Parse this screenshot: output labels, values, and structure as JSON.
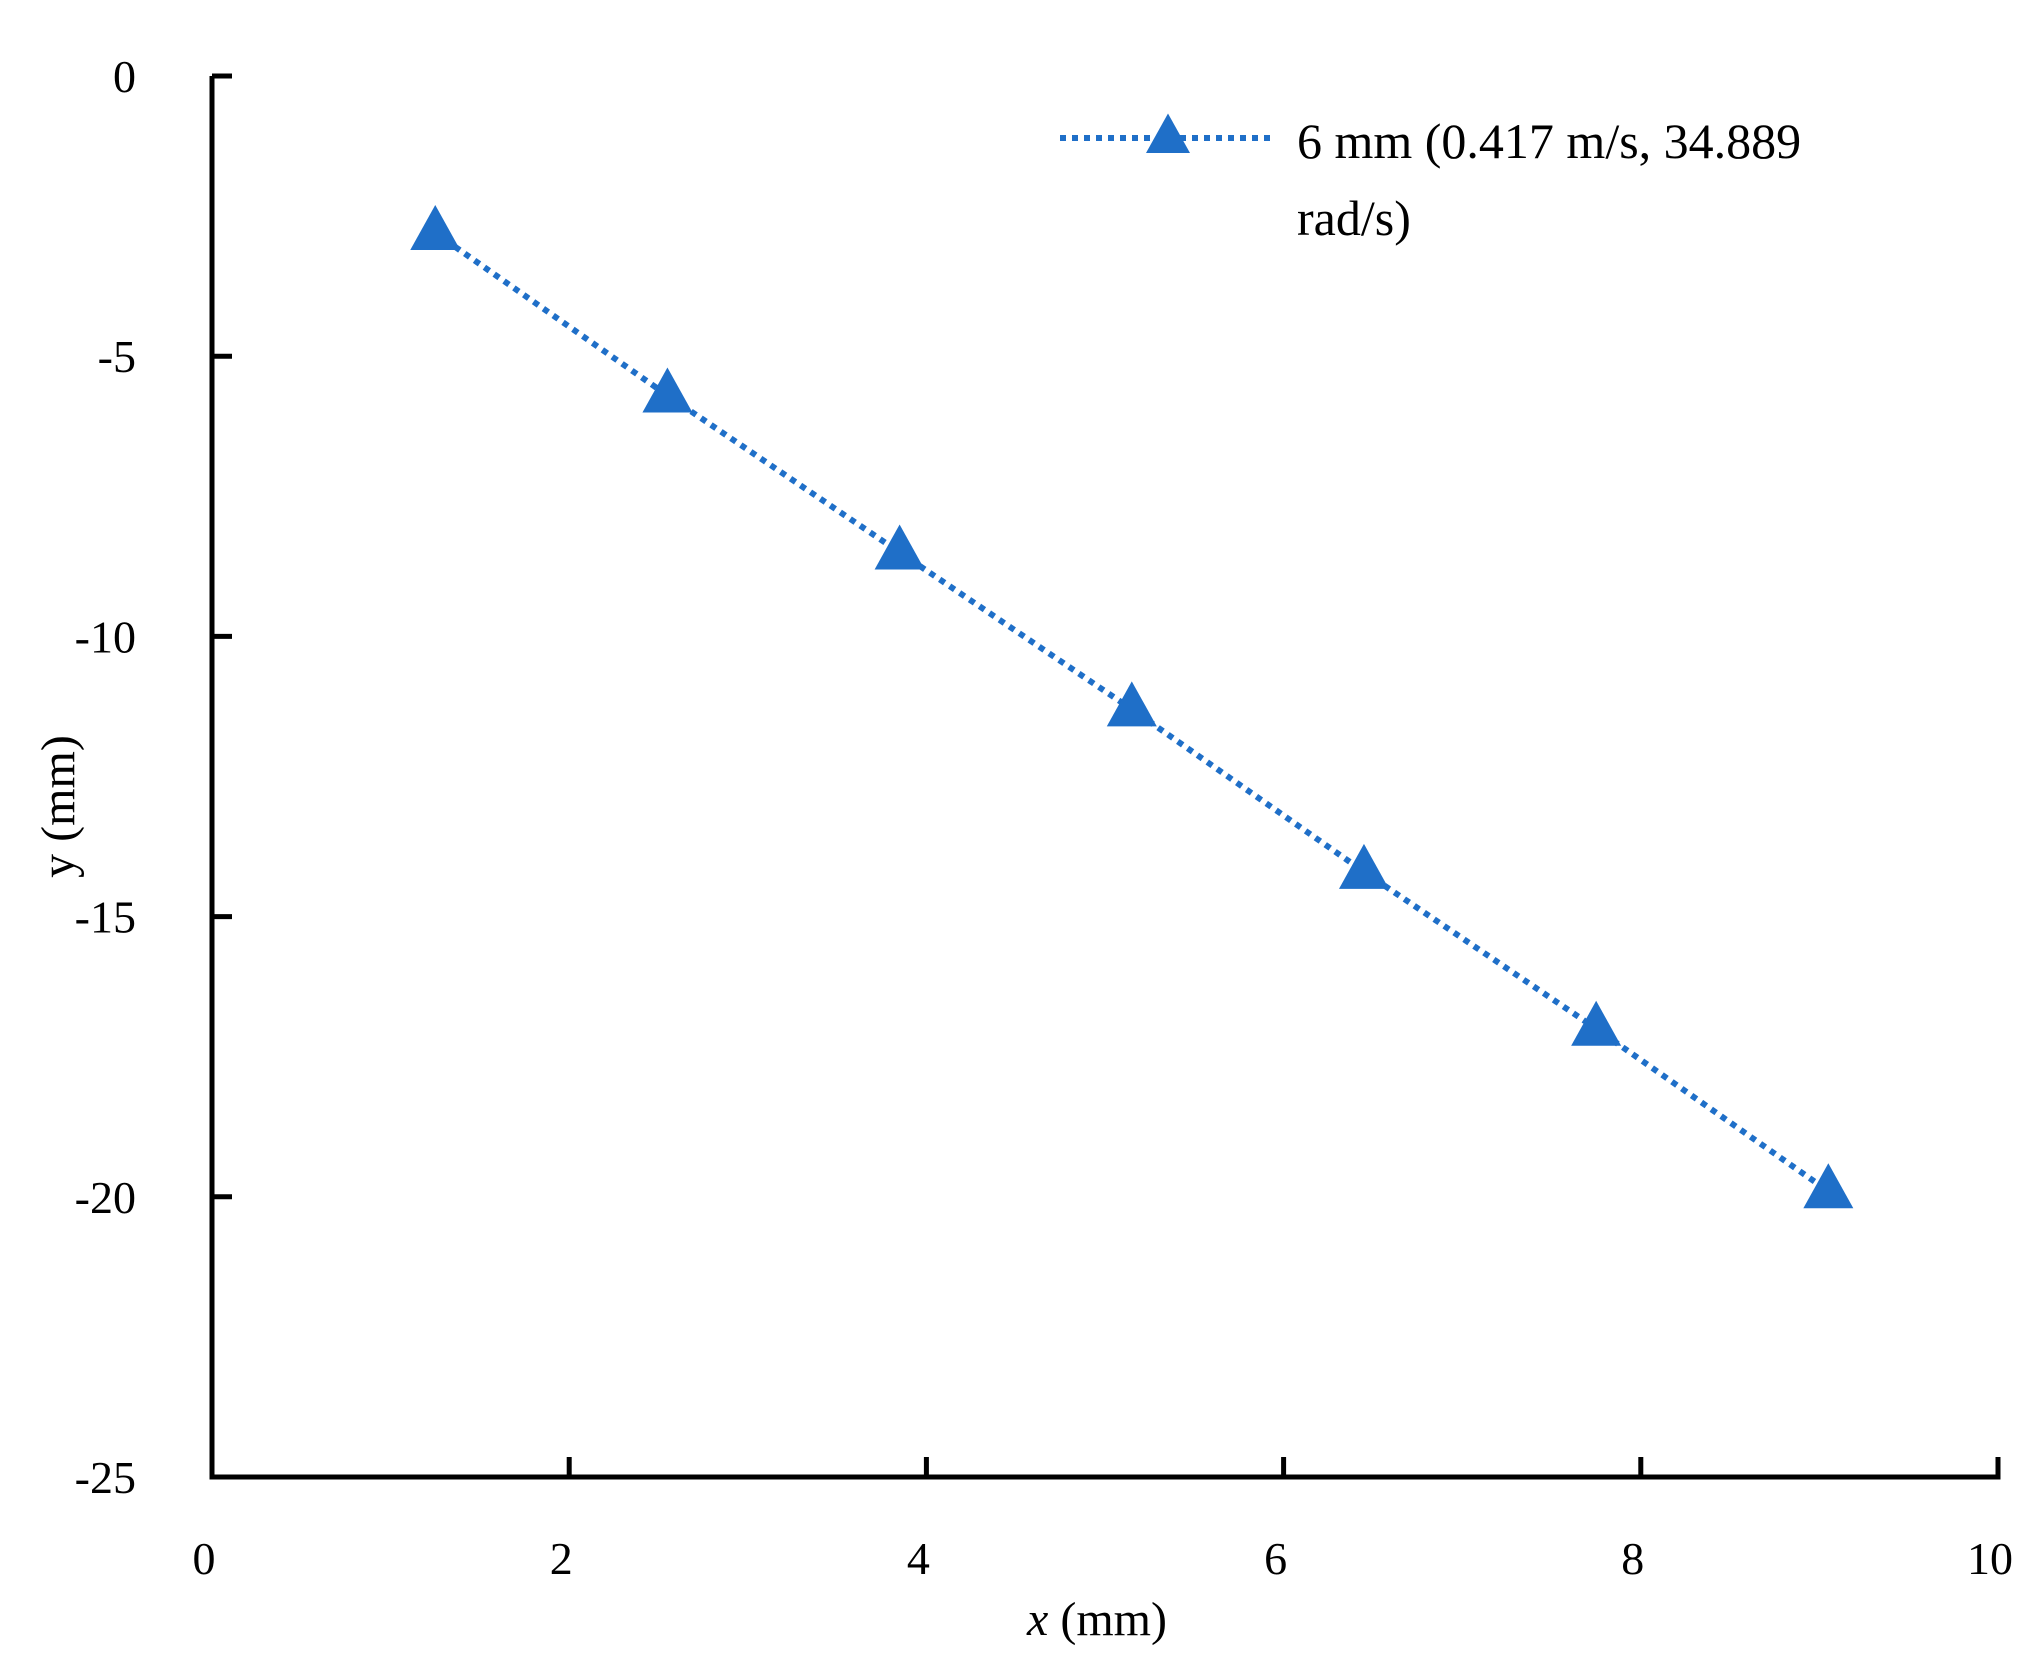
{
  "chart_data": {
    "type": "line",
    "title": "",
    "xlabel": "x (mm)",
    "xlabel_var": "x",
    "xlabel_unit": " (mm)",
    "ylabel": "y (mm)",
    "xlim": [
      0,
      10
    ],
    "ylim": [
      -25,
      0
    ],
    "xticks": [
      "0",
      "2",
      "4",
      "6",
      "8",
      "10"
    ],
    "yticks": [
      "0",
      "-5",
      "-10",
      "-15",
      "-20",
      "-25"
    ],
    "grid": false,
    "legend_position": "top-right",
    "series": [
      {
        "name": "6 mm (0.417 m/s, 34.889 rad/s)",
        "name_lines": [
          "6 mm (0.417 m/s, 34.889",
          "rad/s)"
        ],
        "color": "#1f6fc8",
        "marker": "triangle",
        "line_style": "dotted",
        "x": [
          1.25,
          2.55,
          3.85,
          5.15,
          6.45,
          7.75,
          9.05
        ],
        "y": [
          -2.8,
          -5.7,
          -8.5,
          -11.3,
          -14.2,
          -17.0,
          -19.9
        ]
      }
    ]
  }
}
